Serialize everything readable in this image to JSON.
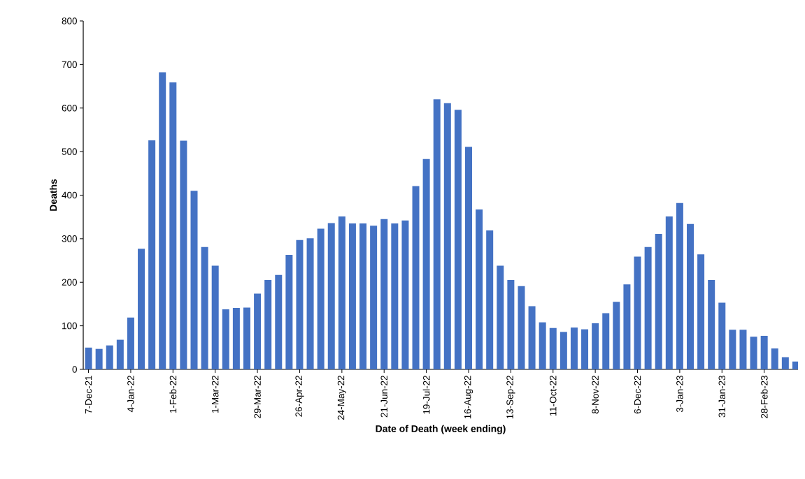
{
  "chart_data": {
    "type": "bar",
    "xlabel": "Date of Death (week ending)",
    "ylabel": "Deaths",
    "categories": [
      "7-Dec-21",
      null,
      null,
      null,
      "4-Jan-22",
      null,
      null,
      null,
      "1-Feb-22",
      null,
      null,
      null,
      "1-Mar-22",
      null,
      null,
      null,
      "29-Mar-22",
      null,
      null,
      null,
      "26-Apr-22",
      null,
      null,
      null,
      "24-May-22",
      null,
      null,
      null,
      "21-Jun-22",
      null,
      null,
      null,
      "19-Jul-22",
      null,
      null,
      null,
      "16-Aug-22",
      null,
      null,
      null,
      "13-Sep-22",
      null,
      null,
      null,
      "11-Oct-22",
      null,
      null,
      null,
      "8-Nov-22",
      null,
      null,
      null,
      "6-Dec-22",
      null,
      null,
      null,
      "3-Jan-23",
      null,
      null,
      null,
      "31-Jan-23",
      null,
      null,
      null,
      "28-Feb-23",
      null,
      null,
      null
    ],
    "values": [
      50,
      47,
      55,
      68,
      119,
      277,
      526,
      682,
      659,
      525,
      410,
      281,
      238,
      138,
      141,
      142,
      174,
      205,
      217,
      263,
      297,
      301,
      323,
      336,
      351,
      335,
      335,
      330,
      345,
      335,
      342,
      421,
      483,
      620,
      611,
      596,
      511,
      367,
      319,
      238,
      205,
      191,
      145,
      108,
      95,
      86,
      96,
      92,
      106,
      129,
      155,
      195,
      259,
      281,
      311,
      351,
      382,
      334,
      264,
      205,
      153,
      91,
      91,
      75,
      77,
      48,
      28,
      18
    ],
    "color": "#4472c4",
    "ylim": [
      0,
      800
    ],
    "yticks": [
      0,
      100,
      200,
      300,
      400,
      500,
      600,
      700,
      800
    ],
    "grid": false,
    "legend": false
  }
}
